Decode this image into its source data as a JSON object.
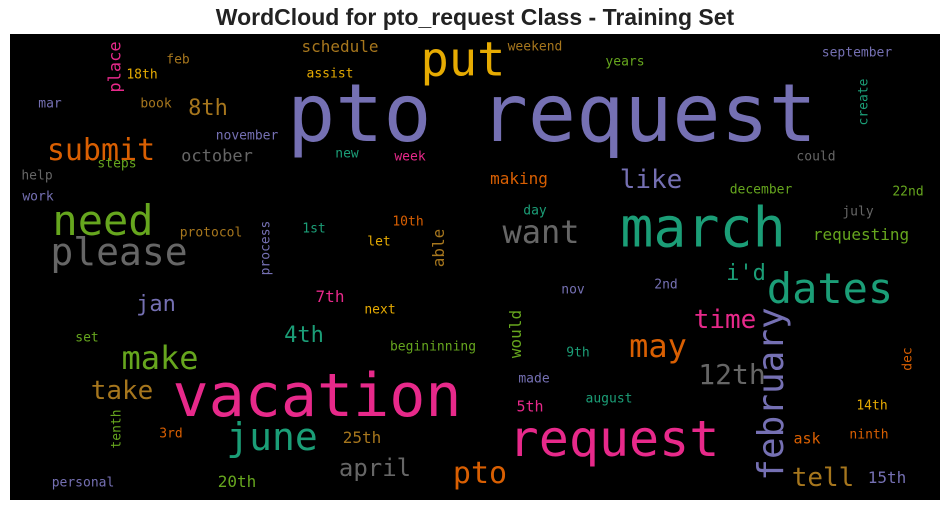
{
  "title": "WordCloud for pto_request Class - Training Set",
  "chart_data": {
    "type": "wordcloud",
    "title": "WordCloud for pto_request Class - Training Set",
    "background": "#000000",
    "words": [
      {
        "text": "pto request",
        "color": "#7570b3"
      },
      {
        "text": "vacation",
        "color": "#e7298a"
      },
      {
        "text": "march",
        "color": "#1b9e77"
      },
      {
        "text": "request",
        "color": "#e7298a"
      },
      {
        "text": "put",
        "color": "#e6ab02"
      },
      {
        "text": "dates",
        "color": "#1b9e77"
      },
      {
        "text": "need",
        "color": "#66a61e"
      },
      {
        "text": "please",
        "color": "#666666"
      },
      {
        "text": "june",
        "color": "#1b9e77"
      },
      {
        "text": "february",
        "color": "#7570b3"
      },
      {
        "text": "make",
        "color": "#66a61e"
      },
      {
        "text": "want",
        "color": "#666666"
      },
      {
        "text": "may",
        "color": "#d95f02"
      },
      {
        "text": "submit",
        "color": "#d95f02"
      },
      {
        "text": "pto",
        "color": "#d95f02"
      },
      {
        "text": "12th",
        "color": "#666666"
      },
      {
        "text": "like",
        "color": "#7570b3"
      },
      {
        "text": "time",
        "color": "#e7298a"
      },
      {
        "text": "take",
        "color": "#a6761d"
      },
      {
        "text": "tell",
        "color": "#a6761d"
      },
      {
        "text": "april",
        "color": "#666666"
      },
      {
        "text": "8th",
        "color": "#a6761d"
      },
      {
        "text": "4th",
        "color": "#1b9e77"
      },
      {
        "text": "i'd",
        "color": "#1b9e77"
      },
      {
        "text": "jan",
        "color": "#7570b3"
      },
      {
        "text": "october",
        "color": "#666666"
      },
      {
        "text": "place",
        "color": "#e7298a"
      },
      {
        "text": "schedule",
        "color": "#a6761d"
      },
      {
        "text": "requesting",
        "color": "#66a61e"
      },
      {
        "text": "making",
        "color": "#d95f02"
      },
      {
        "text": "25th",
        "color": "#a6761d"
      },
      {
        "text": "20th",
        "color": "#66a61e"
      },
      {
        "text": "15th",
        "color": "#7570b3"
      },
      {
        "text": "7th",
        "color": "#e7298a"
      },
      {
        "text": "able",
        "color": "#a6761d"
      },
      {
        "text": "would",
        "color": "#66a61e"
      },
      {
        "text": "5th",
        "color": "#e7298a"
      },
      {
        "text": "ask",
        "color": "#d95f02"
      },
      {
        "text": "weekend",
        "color": "#a6761d"
      },
      {
        "text": "18th",
        "color": "#e6ab02"
      },
      {
        "text": "feb",
        "color": "#a6761d"
      },
      {
        "text": "assist",
        "color": "#e6ab02"
      },
      {
        "text": "years",
        "color": "#66a61e"
      },
      {
        "text": "september",
        "color": "#7570b3"
      },
      {
        "text": "mar",
        "color": "#7570b3"
      },
      {
        "text": "book",
        "color": "#a6761d"
      },
      {
        "text": "create",
        "color": "#1b9e77"
      },
      {
        "text": "november",
        "color": "#7570b3"
      },
      {
        "text": "new",
        "color": "#1b9e77"
      },
      {
        "text": "week",
        "color": "#e7298a"
      },
      {
        "text": "could",
        "color": "#666666"
      },
      {
        "text": "steps",
        "color": "#66a61e"
      },
      {
        "text": "help",
        "color": "#666666"
      },
      {
        "text": "work",
        "color": "#7570b3"
      },
      {
        "text": "december",
        "color": "#66a61e"
      },
      {
        "text": "22nd",
        "color": "#66a61e"
      },
      {
        "text": "day",
        "color": "#1b9e77"
      },
      {
        "text": "10th",
        "color": "#d95f02"
      },
      {
        "text": "july",
        "color": "#666666"
      },
      {
        "text": "protocol",
        "color": "#a6761d"
      },
      {
        "text": "process",
        "color": "#7570b3"
      },
      {
        "text": "1st",
        "color": "#1b9e77"
      },
      {
        "text": "let",
        "color": "#e6ab02"
      },
      {
        "text": "nov",
        "color": "#7570b3"
      },
      {
        "text": "2nd",
        "color": "#7570b3"
      },
      {
        "text": "next",
        "color": "#e6ab02"
      },
      {
        "text": "set",
        "color": "#66a61e"
      },
      {
        "text": "begininning",
        "color": "#66a61e"
      },
      {
        "text": "9th",
        "color": "#1b9e77"
      },
      {
        "text": "dec",
        "color": "#d95f02"
      },
      {
        "text": "made",
        "color": "#7570b3"
      },
      {
        "text": "august",
        "color": "#1b9e77"
      },
      {
        "text": "tenth",
        "color": "#66a61e"
      },
      {
        "text": "3rd",
        "color": "#d95f02"
      },
      {
        "text": "14th",
        "color": "#e6ab02"
      },
      {
        "text": "ninth",
        "color": "#d95f02"
      },
      {
        "text": "personal",
        "color": "#7570b3"
      }
    ]
  }
}
